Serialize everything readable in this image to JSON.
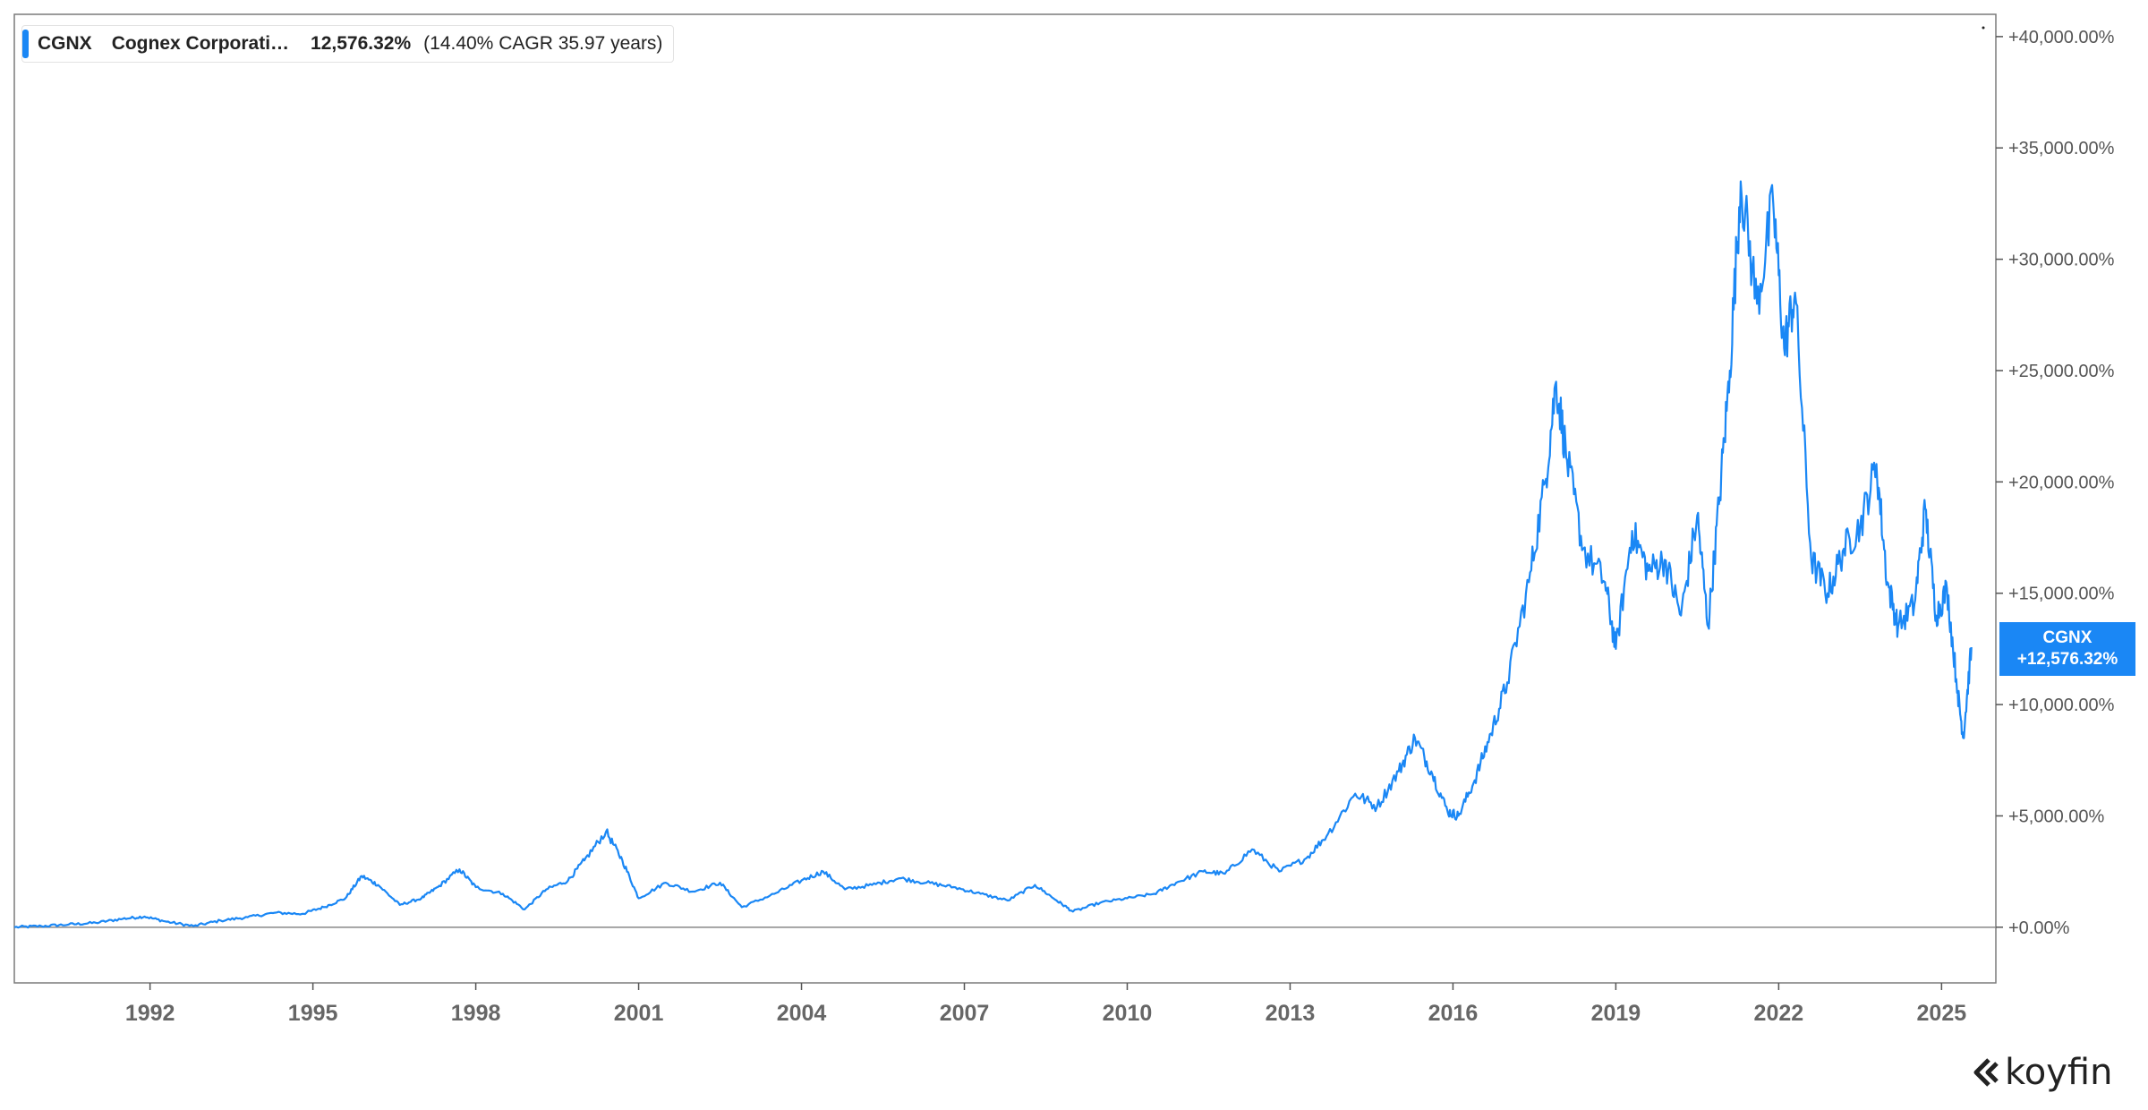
{
  "legend": {
    "ticker": "CGNX",
    "name": "Cognex Corporati…",
    "value": "12,576.32%",
    "cagr": "(14.40% CAGR 35.97 years)",
    "color": "#1a87f5"
  },
  "tag": {
    "ticker": "CGNX",
    "value": "+12,576.32%"
  },
  "brand": {
    "name": "koyfin",
    "icon": "koyfin-logo-icon"
  },
  "chart_data": {
    "type": "line",
    "title": "",
    "xlabel": "",
    "ylabel": "",
    "x_ticks": [
      "1992",
      "1995",
      "1998",
      "2001",
      "2004",
      "2007",
      "2010",
      "2013",
      "2016",
      "2019",
      "2022",
      "2025"
    ],
    "x_tick_years": [
      1992,
      1995,
      1998,
      2001,
      2004,
      2007,
      2010,
      2013,
      2016,
      2019,
      2022,
      2025
    ],
    "y_ticks": [
      0,
      5000,
      10000,
      15000,
      20000,
      25000,
      30000,
      35000,
      40000
    ],
    "y_tick_labels": [
      "+0.00%",
      "+5,000.00%",
      "+10,000.00%",
      "+15,000.00%",
      "+20,000.00%",
      "+25,000.00%",
      "+30,000.00%",
      "+35,000.00%",
      "+40,000.00%"
    ],
    "xlim": [
      1989.5,
      2026.0
    ],
    "ylim": [
      -2500,
      41000
    ],
    "grid": false,
    "legend_position": "top-left",
    "series": [
      {
        "name": "CGNX",
        "color": "#1a87f5",
        "points": [
          [
            1989.5,
            0
          ],
          [
            1990.0,
            50
          ],
          [
            1990.5,
            120
          ],
          [
            1991.0,
            200
          ],
          [
            1991.5,
            380
          ],
          [
            1991.9,
            480
          ],
          [
            1992.3,
            250
          ],
          [
            1992.8,
            50
          ],
          [
            1993.3,
            300
          ],
          [
            1993.8,
            450
          ],
          [
            1994.3,
            650
          ],
          [
            1994.8,
            600
          ],
          [
            1995.2,
            900
          ],
          [
            1995.6,
            1300
          ],
          [
            1995.9,
            2300
          ],
          [
            1996.2,
            1900
          ],
          [
            1996.6,
            1000
          ],
          [
            1997.0,
            1300
          ],
          [
            1997.3,
            1800
          ],
          [
            1997.7,
            2600
          ],
          [
            1998.0,
            1800
          ],
          [
            1998.5,
            1500
          ],
          [
            1998.9,
            800
          ],
          [
            1999.3,
            1700
          ],
          [
            1999.7,
            2100
          ],
          [
            2000.0,
            3000
          ],
          [
            2000.4,
            4300
          ],
          [
            2000.7,
            3000
          ],
          [
            2001.0,
            1300
          ],
          [
            2001.5,
            2000
          ],
          [
            2002.0,
            1600
          ],
          [
            2002.5,
            2000
          ],
          [
            2002.9,
            900
          ],
          [
            2003.5,
            1500
          ],
          [
            2004.0,
            2100
          ],
          [
            2004.4,
            2500
          ],
          [
            2004.8,
            1700
          ],
          [
            2005.3,
            1900
          ],
          [
            2005.8,
            2200
          ],
          [
            2006.3,
            2000
          ],
          [
            2006.8,
            1800
          ],
          [
            2007.3,
            1500
          ],
          [
            2007.8,
            1200
          ],
          [
            2008.3,
            1900
          ],
          [
            2008.7,
            1200
          ],
          [
            2009.0,
            700
          ],
          [
            2009.5,
            1100
          ],
          [
            2010.0,
            1300
          ],
          [
            2010.5,
            1500
          ],
          [
            2010.9,
            2000
          ],
          [
            2011.4,
            2500
          ],
          [
            2011.8,
            2400
          ],
          [
            2012.3,
            3500
          ],
          [
            2012.8,
            2500
          ],
          [
            2013.3,
            3100
          ],
          [
            2013.7,
            4200
          ],
          [
            2014.2,
            6000
          ],
          [
            2014.6,
            5400
          ],
          [
            2015.0,
            7000
          ],
          [
            2015.3,
            8500
          ],
          [
            2015.6,
            7000
          ],
          [
            2015.9,
            5200
          ],
          [
            2016.1,
            5000
          ],
          [
            2016.4,
            6600
          ],
          [
            2016.7,
            8700
          ],
          [
            2017.0,
            11000
          ],
          [
            2017.4,
            15500
          ],
          [
            2017.7,
            20000
          ],
          [
            2017.9,
            24500
          ],
          [
            2018.1,
            21000
          ],
          [
            2018.4,
            17000
          ],
          [
            2018.8,
            15500
          ],
          [
            2019.0,
            12500
          ],
          [
            2019.3,
            17800
          ],
          [
            2019.6,
            16000
          ],
          [
            2019.9,
            16500
          ],
          [
            2020.2,
            14000
          ],
          [
            2020.5,
            18500
          ],
          [
            2020.7,
            13500
          ],
          [
            2020.9,
            19000
          ],
          [
            2021.1,
            25000
          ],
          [
            2021.3,
            33500
          ],
          [
            2021.6,
            28000
          ],
          [
            2021.9,
            32500
          ],
          [
            2022.1,
            26000
          ],
          [
            2022.3,
            28500
          ],
          [
            2022.6,
            16500
          ],
          [
            2022.9,
            15000
          ],
          [
            2023.2,
            17000
          ],
          [
            2023.5,
            18000
          ],
          [
            2023.8,
            20800
          ],
          [
            2024.0,
            15500
          ],
          [
            2024.2,
            13500
          ],
          [
            2024.5,
            14500
          ],
          [
            2024.7,
            18800
          ],
          [
            2024.9,
            14000
          ],
          [
            2025.1,
            15200
          ],
          [
            2025.3,
            10500
          ],
          [
            2025.4,
            8500
          ],
          [
            2025.55,
            12576.32
          ]
        ]
      }
    ]
  }
}
